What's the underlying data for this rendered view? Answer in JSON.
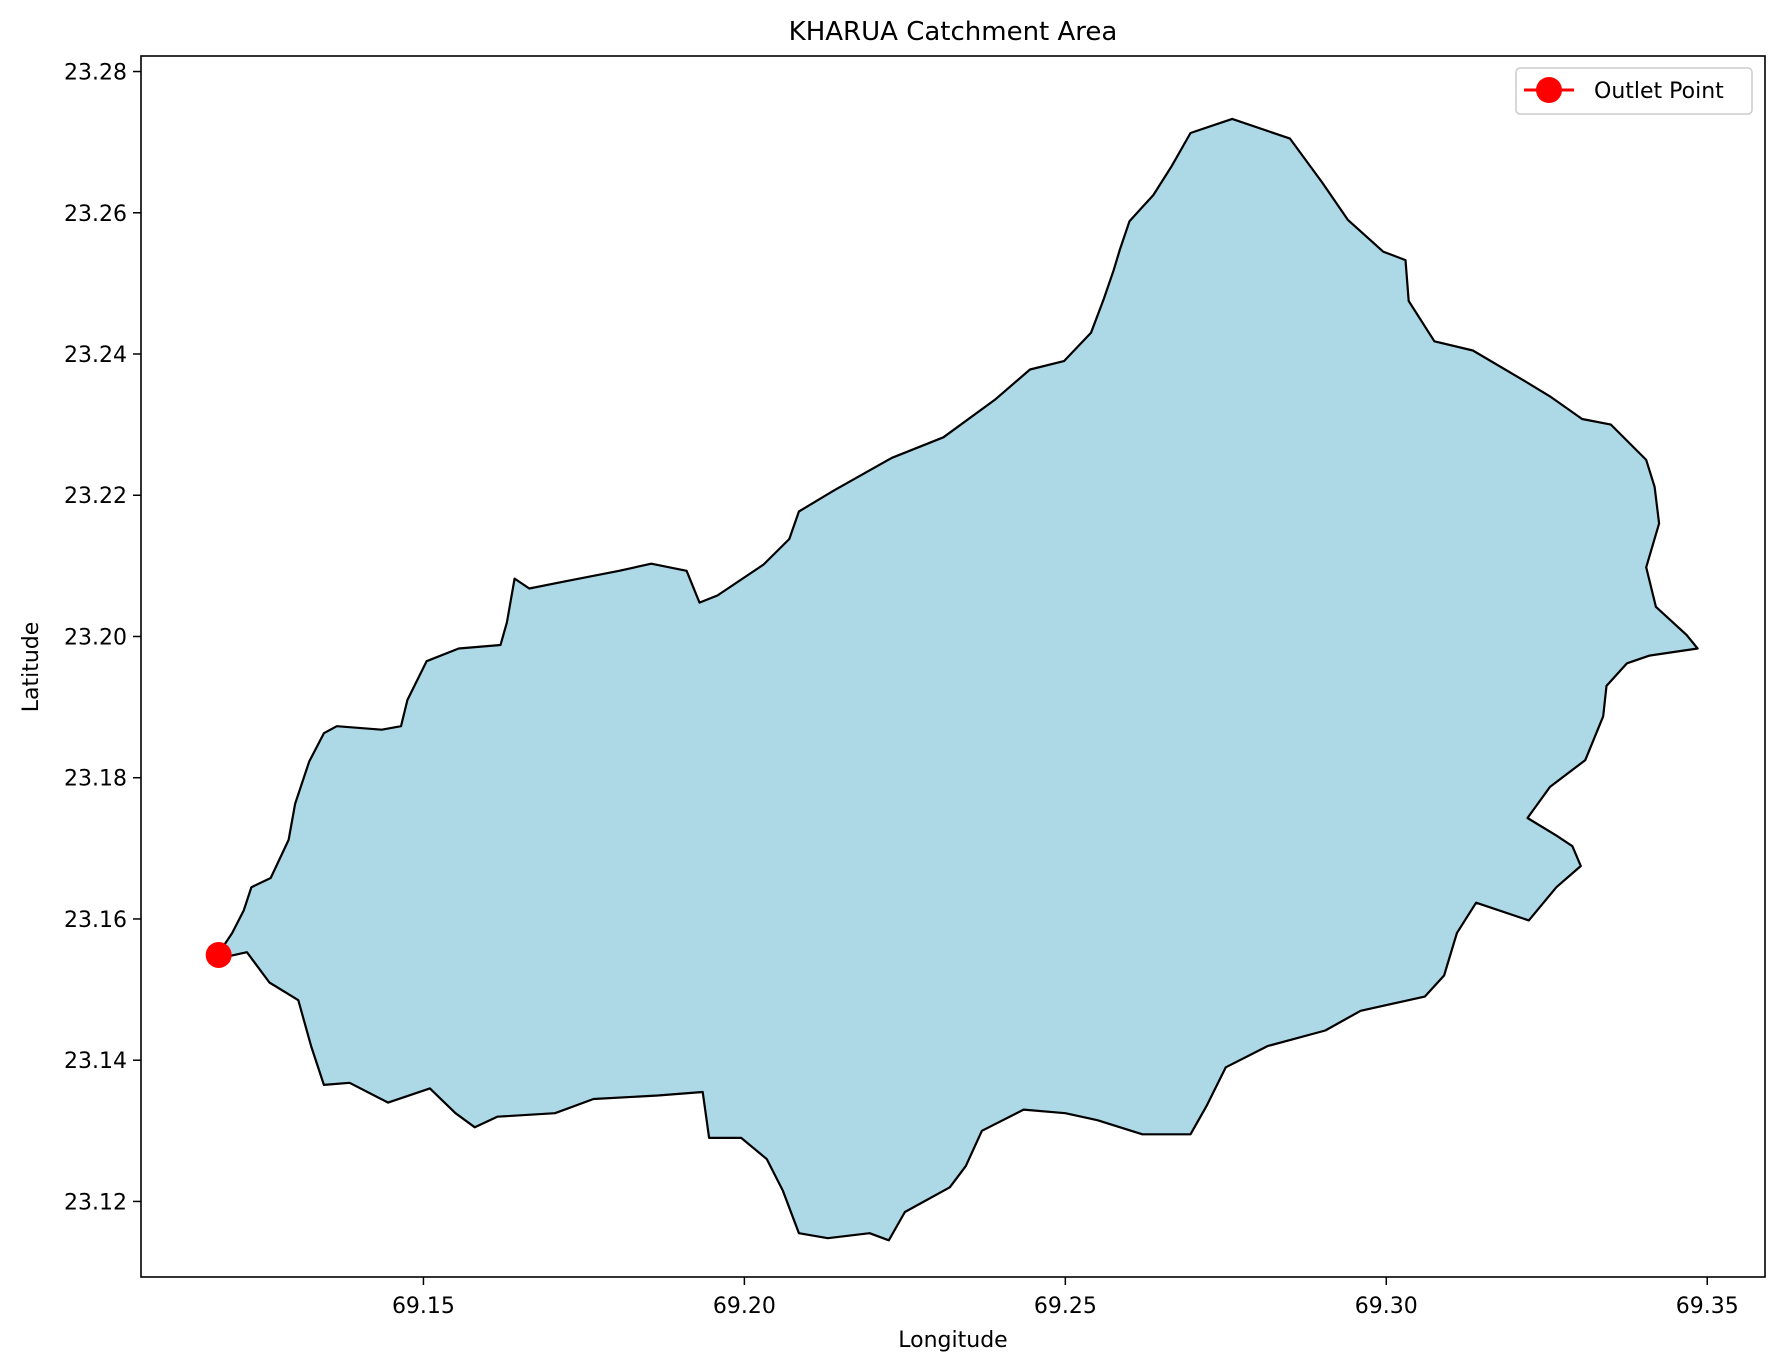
{
  "chart_data": {
    "type": "map",
    "title": "KHARUA Catchment Area",
    "xlabel": "Longitude",
    "ylabel": "Latitude",
    "xlim": [
      69.106,
      69.359
    ],
    "ylim": [
      23.1093,
      23.2822
    ],
    "xticks": [
      69.15,
      69.2,
      69.25,
      69.3,
      69.35
    ],
    "xtick_labels": [
      "69.15",
      "69.20",
      "69.25",
      "69.30",
      "69.35"
    ],
    "yticks": [
      23.12,
      23.14,
      23.16,
      23.18,
      23.2,
      23.22,
      23.24,
      23.26,
      23.28
    ],
    "ytick_labels": [
      "23.12",
      "23.14",
      "23.16",
      "23.18",
      "23.20",
      "23.22",
      "23.24",
      "23.26",
      "23.28"
    ],
    "grid": false,
    "legend_position": "top-right",
    "legend": [
      {
        "label": "Outlet Point",
        "color": "#ff0000",
        "marker": "circle"
      }
    ],
    "catchment": {
      "fill_color": "#add8e6",
      "edge_color": "#000000",
      "boundary_lonlat": [
        [
          69.1202,
          23.158
        ],
        [
          69.122,
          23.1612
        ],
        [
          69.1232,
          23.1645
        ],
        [
          69.1262,
          23.1658
        ],
        [
          69.129,
          23.1712
        ],
        [
          69.13,
          23.1763
        ],
        [
          69.1322,
          23.1823
        ],
        [
          69.1345,
          23.1863
        ],
        [
          69.1365,
          23.1873
        ],
        [
          69.1435,
          23.1868
        ],
        [
          69.1465,
          23.1873
        ],
        [
          69.1475,
          23.191
        ],
        [
          69.1505,
          23.1965
        ],
        [
          69.1555,
          23.1983
        ],
        [
          69.162,
          23.1988
        ],
        [
          69.163,
          23.202
        ],
        [
          69.1642,
          23.2082
        ],
        [
          69.1665,
          23.2068
        ],
        [
          69.172,
          23.2078
        ],
        [
          69.1805,
          23.2093
        ],
        [
          69.1855,
          23.2103
        ],
        [
          69.191,
          23.2093
        ],
        [
          69.193,
          23.2048
        ],
        [
          69.1958,
          23.2058
        ],
        [
          69.203,
          23.2102
        ],
        [
          69.207,
          23.2138
        ],
        [
          69.2085,
          23.2177
        ],
        [
          69.214,
          23.2207
        ],
        [
          69.223,
          23.2253
        ],
        [
          69.231,
          23.2282
        ],
        [
          69.239,
          23.2335
        ],
        [
          69.2445,
          23.2378
        ],
        [
          69.2498,
          23.239
        ],
        [
          69.254,
          23.243
        ],
        [
          69.256,
          23.2478
        ],
        [
          69.2575,
          23.2518
        ],
        [
          69.2585,
          23.2548
        ],
        [
          69.26,
          23.2588
        ],
        [
          69.2637,
          23.2625
        ],
        [
          69.2665,
          23.2665
        ],
        [
          69.2695,
          23.2713
        ],
        [
          69.276,
          23.2733
        ],
        [
          69.285,
          23.2705
        ],
        [
          69.29,
          23.2643
        ],
        [
          69.294,
          23.259
        ],
        [
          69.2995,
          23.2545
        ],
        [
          69.303,
          23.2533
        ],
        [
          69.3035,
          23.2475
        ],
        [
          69.3075,
          23.2418
        ],
        [
          69.3135,
          23.2405
        ],
        [
          69.3215,
          23.2362
        ],
        [
          69.3255,
          23.234
        ],
        [
          69.3305,
          23.2308
        ],
        [
          69.335,
          23.23
        ],
        [
          69.3405,
          23.225
        ],
        [
          69.3418,
          23.2212
        ],
        [
          69.3425,
          23.216
        ],
        [
          69.3405,
          23.2098
        ],
        [
          69.342,
          23.2042
        ],
        [
          69.3468,
          23.2002
        ],
        [
          69.3485,
          23.1983
        ],
        [
          69.341,
          23.1973
        ],
        [
          69.3375,
          23.1962
        ],
        [
          69.3343,
          23.193
        ],
        [
          69.3338,
          23.1887
        ],
        [
          69.331,
          23.1825
        ],
        [
          69.3255,
          23.1787
        ],
        [
          69.322,
          23.1743
        ],
        [
          69.3265,
          23.1718
        ],
        [
          69.329,
          23.1703
        ],
        [
          69.3303,
          23.1675
        ],
        [
          69.3265,
          23.1645
        ],
        [
          69.3222,
          23.1598
        ],
        [
          69.314,
          23.1623
        ],
        [
          69.311,
          23.158
        ],
        [
          69.309,
          23.152
        ],
        [
          69.306,
          23.149
        ],
        [
          69.296,
          23.147
        ],
        [
          69.2905,
          23.1442
        ],
        [
          69.2815,
          23.142
        ],
        [
          69.275,
          23.139
        ],
        [
          69.272,
          23.1335
        ],
        [
          69.2695,
          23.1295
        ],
        [
          69.262,
          23.1295
        ],
        [
          69.255,
          23.1315
        ],
        [
          69.25,
          23.1325
        ],
        [
          69.2435,
          23.133
        ],
        [
          69.237,
          23.13
        ],
        [
          69.2345,
          23.125
        ],
        [
          69.232,
          23.122
        ],
        [
          69.225,
          23.1185
        ],
        [
          69.2225,
          23.1145
        ],
        [
          69.2195,
          23.1155
        ],
        [
          69.213,
          23.1148
        ],
        [
          69.2085,
          23.1155
        ],
        [
          69.206,
          23.1215
        ],
        [
          69.2035,
          23.126
        ],
        [
          69.1995,
          23.129
        ],
        [
          69.1945,
          23.129
        ],
        [
          69.1935,
          23.1355
        ],
        [
          69.1865,
          23.135
        ],
        [
          69.1765,
          23.1345
        ],
        [
          69.1705,
          23.1325
        ],
        [
          69.1615,
          23.132
        ],
        [
          69.158,
          23.1305
        ],
        [
          69.155,
          23.1325
        ],
        [
          69.151,
          23.136
        ],
        [
          69.1445,
          23.134
        ],
        [
          69.1385,
          23.1368
        ],
        [
          69.1345,
          23.1365
        ],
        [
          69.1325,
          23.142
        ],
        [
          69.1305,
          23.1485
        ],
        [
          69.126,
          23.151
        ],
        [
          69.1225,
          23.1553
        ],
        [
          69.1195,
          23.1547
        ],
        [
          69.118,
          23.155
        ]
      ]
    },
    "outlet_point": {
      "label": "Outlet Point",
      "lon": 69.1181,
      "lat": 23.1549,
      "color": "#ff0000"
    }
  }
}
